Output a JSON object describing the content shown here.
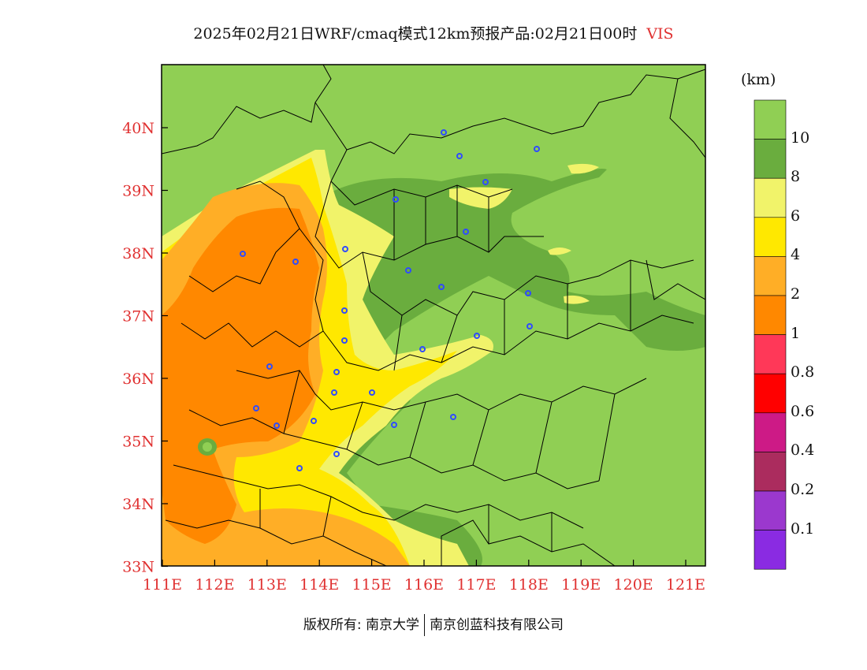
{
  "title": "2025年02月21日WRF/cmaq模式12km预报产品:02月21日00时",
  "variable": "VIS",
  "colorbar": {
    "unit": "(km)",
    "colors": [
      "#90cf54",
      "#6aad3e",
      "#f1f36a",
      "#ffe800",
      "#ffae26",
      "#ff8800",
      "#ff3858",
      "#ff0000",
      "#cd1a86",
      "#ab2c5e",
      "#9b38ce",
      "#8a2be2"
    ],
    "labels": [
      "10",
      "8",
      "6",
      "4",
      "2",
      "1",
      "0.8",
      "0.6",
      "0.4",
      "0.2",
      "0.1"
    ]
  },
  "axes": {
    "lat_ticks": [
      "40N",
      "39N",
      "38N",
      "37N",
      "36N",
      "35N",
      "34N",
      "33N"
    ],
    "lon_ticks": [
      "111E",
      "112E",
      "113E",
      "114E",
      "115E",
      "116E",
      "117E",
      "118E",
      "119E",
      "120E",
      "121E"
    ]
  },
  "footer": {
    "left": "版权所有: 南京大学",
    "right": "南京创蓝科技有限公司"
  }
}
